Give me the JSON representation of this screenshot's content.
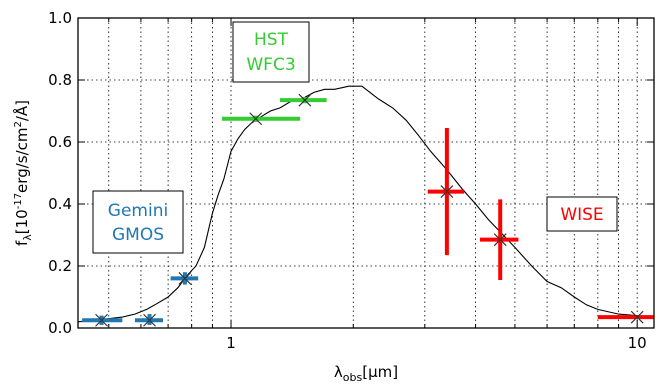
{
  "chart_data": {
    "type": "scatter",
    "title": "",
    "xlabel": "λ",
    "xlabel_sub": "obs",
    "xlabel_unit": "[μm]",
    "ylabel": "f",
    "ylabel_sub": "λ",
    "ylabel_unit_pre": "[10",
    "ylabel_unit_exp": "-17",
    "ylabel_unit_mid": "erg/s/cm",
    "ylabel_unit_exp2": "2",
    "ylabel_unit_post": "/Å]",
    "x_scale": "log",
    "xlim": [
      0.42,
      11.0
    ],
    "ylim": [
      0.0,
      1.0
    ],
    "grid": true,
    "y_ticks": [
      {
        "value": 0.0,
        "label": "0.0"
      },
      {
        "value": 0.2,
        "label": "0.2"
      },
      {
        "value": 0.4,
        "label": "0.4"
      },
      {
        "value": 0.6,
        "label": "0.6"
      },
      {
        "value": 0.8,
        "label": "0.8"
      },
      {
        "value": 1.0,
        "label": "1.0"
      }
    ],
    "x_ticks": [
      {
        "value": 1,
        "label": "1"
      },
      {
        "value": 10,
        "label": "10"
      }
    ],
    "template_spectrum": {
      "color": "#000000",
      "points": [
        [
          0.42,
          0.02
        ],
        [
          0.46,
          0.025
        ],
        [
          0.5,
          0.03
        ],
        [
          0.54,
          0.035
        ],
        [
          0.58,
          0.045
        ],
        [
          0.62,
          0.06
        ],
        [
          0.66,
          0.08
        ],
        [
          0.7,
          0.1
        ],
        [
          0.74,
          0.13
        ],
        [
          0.78,
          0.17
        ],
        [
          0.82,
          0.2
        ],
        [
          0.86,
          0.26
        ],
        [
          0.9,
          0.37
        ],
        [
          0.93,
          0.43
        ],
        [
          0.96,
          0.48
        ],
        [
          1.0,
          0.57
        ],
        [
          1.04,
          0.61
        ],
        [
          1.08,
          0.64
        ],
        [
          1.12,
          0.66
        ],
        [
          1.18,
          0.68
        ],
        [
          1.25,
          0.7
        ],
        [
          1.32,
          0.71
        ],
        [
          1.4,
          0.73
        ],
        [
          1.5,
          0.74
        ],
        [
          1.6,
          0.76
        ],
        [
          1.7,
          0.77
        ],
        [
          1.8,
          0.77
        ],
        [
          1.95,
          0.78
        ],
        [
          2.1,
          0.78
        ],
        [
          2.3,
          0.74
        ],
        [
          2.5,
          0.71
        ],
        [
          2.7,
          0.67
        ],
        [
          2.9,
          0.62
        ],
        [
          3.1,
          0.57
        ],
        [
          3.3,
          0.53
        ],
        [
          3.5,
          0.49
        ],
        [
          3.7,
          0.45
        ],
        [
          4.0,
          0.4
        ],
        [
          4.3,
          0.35
        ],
        [
          4.6,
          0.31
        ],
        [
          5.0,
          0.26
        ],
        [
          5.5,
          0.2
        ],
        [
          6.0,
          0.15
        ],
        [
          6.5,
          0.13
        ],
        [
          7.0,
          0.1
        ],
        [
          7.5,
          0.075
        ],
        [
          8.0,
          0.06
        ],
        [
          9.0,
          0.045
        ],
        [
          10.0,
          0.04
        ],
        [
          11.0,
          0.035
        ]
      ]
    },
    "series": [
      {
        "name": "Gemini GMOS",
        "color": "#1f77b4",
        "points": [
          {
            "x": 0.48,
            "y": 0.025,
            "xerr": [
              0.43,
              0.54
            ],
            "yerr": [
              0.01,
              0.04
            ]
          },
          {
            "x": 0.63,
            "y": 0.025,
            "xerr": [
              0.58,
              0.68
            ],
            "yerr": [
              0.01,
              0.045
            ]
          },
          {
            "x": 0.77,
            "y": 0.16,
            "xerr": [
              0.71,
              0.83
            ],
            "yerr": [
              0.14,
              0.18
            ]
          }
        ]
      },
      {
        "name": "HST WFC3",
        "color": "#33cc33",
        "points": [
          {
            "x": 1.15,
            "y": 0.675,
            "xerr": [
              0.95,
              1.48
            ],
            "yerr": [
              0.665,
              0.685
            ]
          },
          {
            "x": 1.52,
            "y": 0.735,
            "xerr": [
              1.32,
              1.72
            ],
            "yerr": [
              0.725,
              0.745
            ]
          }
        ]
      },
      {
        "name": "WISE",
        "color": "#ff0000",
        "points": [
          {
            "x": 3.4,
            "y": 0.44,
            "xerr": [
              3.05,
              3.75
            ],
            "yerr": [
              0.235,
              0.645
            ]
          },
          {
            "x": 4.6,
            "y": 0.285,
            "xerr": [
              4.1,
              5.1
            ],
            "yerr": [
              0.155,
              0.415
            ]
          },
          {
            "x": 10.0,
            "y": 0.035,
            "xerr": [
              8.0,
              11.0
            ],
            "yerr": [
              0.03,
              0.04
            ]
          }
        ]
      }
    ],
    "annotations": [
      {
        "id": "gemini",
        "lines": [
          "Gemini",
          "GMOS"
        ],
        "color": "#1f77b4"
      },
      {
        "id": "hst",
        "lines": [
          "HST",
          "WFC3"
        ],
        "color": "#33cc33"
      },
      {
        "id": "wise",
        "lines": [
          "WISE"
        ],
        "color": "#ff0000"
      }
    ]
  }
}
